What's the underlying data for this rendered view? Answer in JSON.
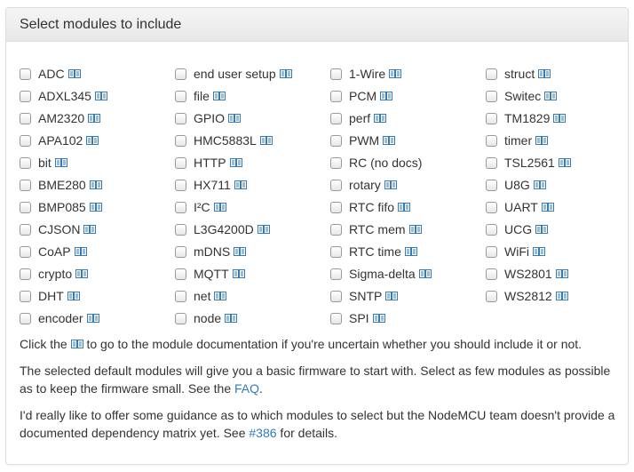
{
  "panel": {
    "title": "Select modules to include"
  },
  "columns": [
    [
      "ADC",
      "ADXL345",
      "AM2320",
      "APA102",
      "bit",
      "BME280",
      "BMP085",
      "CJSON",
      "CoAP",
      "crypto",
      "DHT",
      "encoder"
    ],
    [
      "end user setup",
      "file",
      "GPIO",
      "HMC5883L",
      "HTTP",
      "HX711",
      "I²C",
      "L3G4200D",
      "mDNS",
      "MQTT",
      "net",
      "node"
    ],
    [
      "1-Wire",
      "PCM",
      "perf",
      "PWM",
      "RC (no docs)",
      "rotary",
      "RTC fifo",
      "RTC mem",
      "RTC time",
      "Sigma-delta",
      "SNTP",
      "SPI"
    ],
    [
      "struct",
      "Switec",
      "TM1829",
      "timer",
      "TSL2561",
      "U8G",
      "UART",
      "UCG",
      "WiFi",
      "WS2801",
      "WS2812"
    ]
  ],
  "no_docs": [
    "RC (no docs)"
  ],
  "text": {
    "p1_a": "Click the",
    "p1_b": "to go to the module documentation if you're uncertain whether you should include it or not.",
    "p2": "The selected default modules will give you a basic firmware to start with. Select as few modules as possible as to keep the firmware small. See the ",
    "p2_link": "FAQ",
    "p2_end": ".",
    "p3": "I'd really like to offer some guidance as to which modules to select but the NodeMCU team doesn't provide a documented dependency matrix yet. See ",
    "p3_link": "#386",
    "p3_end": " for details."
  },
  "colors": {
    "link": "#337ab7"
  },
  "icons": {
    "doc": "book-icon"
  }
}
